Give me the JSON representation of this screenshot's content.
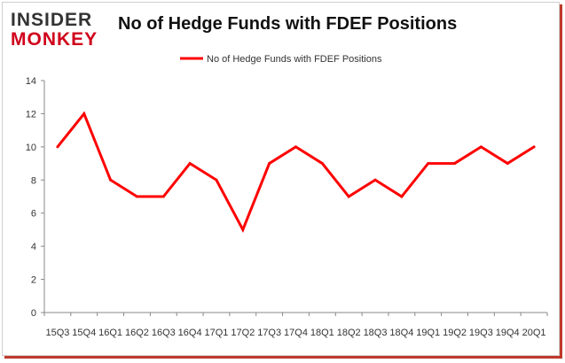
{
  "brand": {
    "line1": "INSIDER",
    "line2": "MONKEY"
  },
  "chart_data": {
    "type": "line",
    "title": "No of Hedge Funds with FDEF Positions",
    "xlabel": "",
    "ylabel": "",
    "categories": [
      "15Q3",
      "15Q4",
      "16Q1",
      "16Q2",
      "16Q3",
      "16Q4",
      "17Q1",
      "17Q2",
      "17Q3",
      "17Q4",
      "18Q1",
      "18Q2",
      "18Q3",
      "18Q4",
      "19Q1",
      "19Q2",
      "19Q3",
      "19Q4",
      "20Q1"
    ],
    "series": [
      {
        "name": "No of Hedge Funds with FDEF Positions",
        "color": "#ff0000",
        "values": [
          10,
          12,
          8,
          7,
          7,
          9,
          8,
          5,
          9,
          10,
          9,
          7,
          8,
          7,
          9,
          9,
          10,
          9,
          10
        ]
      }
    ],
    "ylim": [
      0,
      14
    ],
    "yticks": [
      0,
      2,
      4,
      6,
      8,
      10,
      12,
      14
    ],
    "legend_position": "top-center",
    "grid": false
  }
}
